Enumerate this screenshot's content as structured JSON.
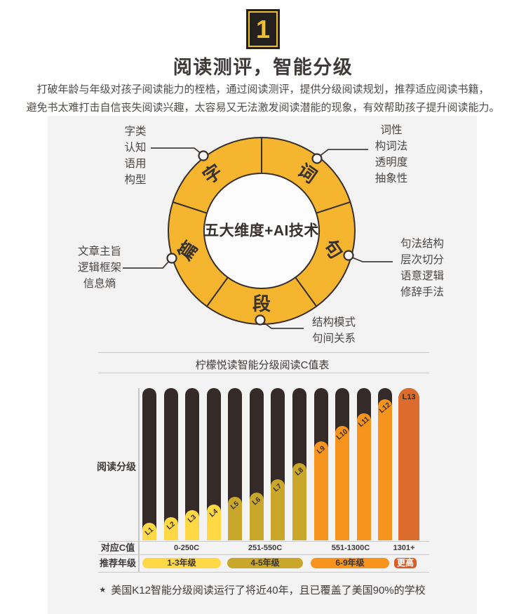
{
  "badge": {
    "number": "1"
  },
  "header": {
    "title": "阅读测评，智能分级",
    "desc": [
      "打破年龄与年级对孩子阅读能力的桎梏，通过阅读测评，提供分级阅读规划，推荐适应阅读书籍，",
      "避免书太难打击自信丧失阅读兴趣，太容易又无法激发阅读潜能的现象，有效帮助孩子提升阅读能力。"
    ]
  },
  "donut": {
    "center_label": "五大维度+AI技术",
    "segments": [
      "字",
      "词",
      "句",
      "段",
      "篇"
    ],
    "callouts": {
      "zi": [
        "字类",
        "认知",
        "语用",
        "构型"
      ],
      "ci": [
        "词性",
        "构词法",
        "透明度",
        "抽象性"
      ],
      "pian": [
        "文章主旨",
        "逻辑框架",
        "信息熵"
      ],
      "ju": [
        "句法结构",
        "层次切分",
        "语意逻辑",
        "修辞手法"
      ],
      "duan": [
        "结构模式",
        "句间关系"
      ]
    }
  },
  "chart_data": {
    "type": "bar",
    "title": "柠檬悦读智能分级阅读C值表",
    "ylabel": "阅读分级",
    "track_color": "#342B28",
    "bars": [
      {
        "label": "L1",
        "pct": 11.5,
        "color": "#FFD845"
      },
      {
        "label": "L2",
        "pct": 15.2,
        "color": "#FFD845"
      },
      {
        "label": "L3",
        "pct": 19.8,
        "color": "#FFD845"
      },
      {
        "label": "L4",
        "pct": 23.5,
        "color": "#FFD845"
      },
      {
        "label": "L5",
        "pct": 28.6,
        "color": "#C8A72B"
      },
      {
        "label": "L6",
        "pct": 31.3,
        "color": "#C8A72B"
      },
      {
        "label": "L7",
        "pct": 40.1,
        "color": "#C8A72B"
      },
      {
        "label": "L8",
        "pct": 50.7,
        "color": "#C8A72B"
      },
      {
        "label": "L9",
        "pct": 65.0,
        "color": "#F7941E"
      },
      {
        "label": "L10",
        "pct": 75.1,
        "color": "#F7941E"
      },
      {
        "label": "L11",
        "pct": 83.4,
        "color": "#F7941E"
      },
      {
        "label": "L12",
        "pct": 92.6,
        "color": "#F7941E"
      },
      {
        "label": "L13",
        "pct": 100,
        "color": "#DC6C2D",
        "wide": true,
        "label_rotate": 0
      }
    ],
    "cvalue_row_label": "对应C值",
    "cvalue_groups": [
      "0-250C",
      "251-550C",
      "551-1300C",
      "1301+"
    ],
    "grade_row_label": "推荐年级",
    "grades": [
      {
        "label": "1-3年级",
        "color": "#FFD845"
      },
      {
        "label": "4-5年级",
        "color": "#C8A72B"
      },
      {
        "label": "6-9年级",
        "color": "#F7941E"
      },
      {
        "label": "更高",
        "color": "#DB5E29",
        "text_color": "#ffffff"
      }
    ],
    "footnote_marker": "★",
    "footnote": "美国K12智能分级阅读运行了将近40年，且已覆盖了美国90%的学校"
  },
  "colors": {
    "badge_yellow": "#ECC030",
    "badge_black": "#23201E",
    "donut_ring": "#F6B52E",
    "outline_dark": "#37302C",
    "panel_gray": "#F3F3F3",
    "divider_gray": "#C9C9C9"
  }
}
